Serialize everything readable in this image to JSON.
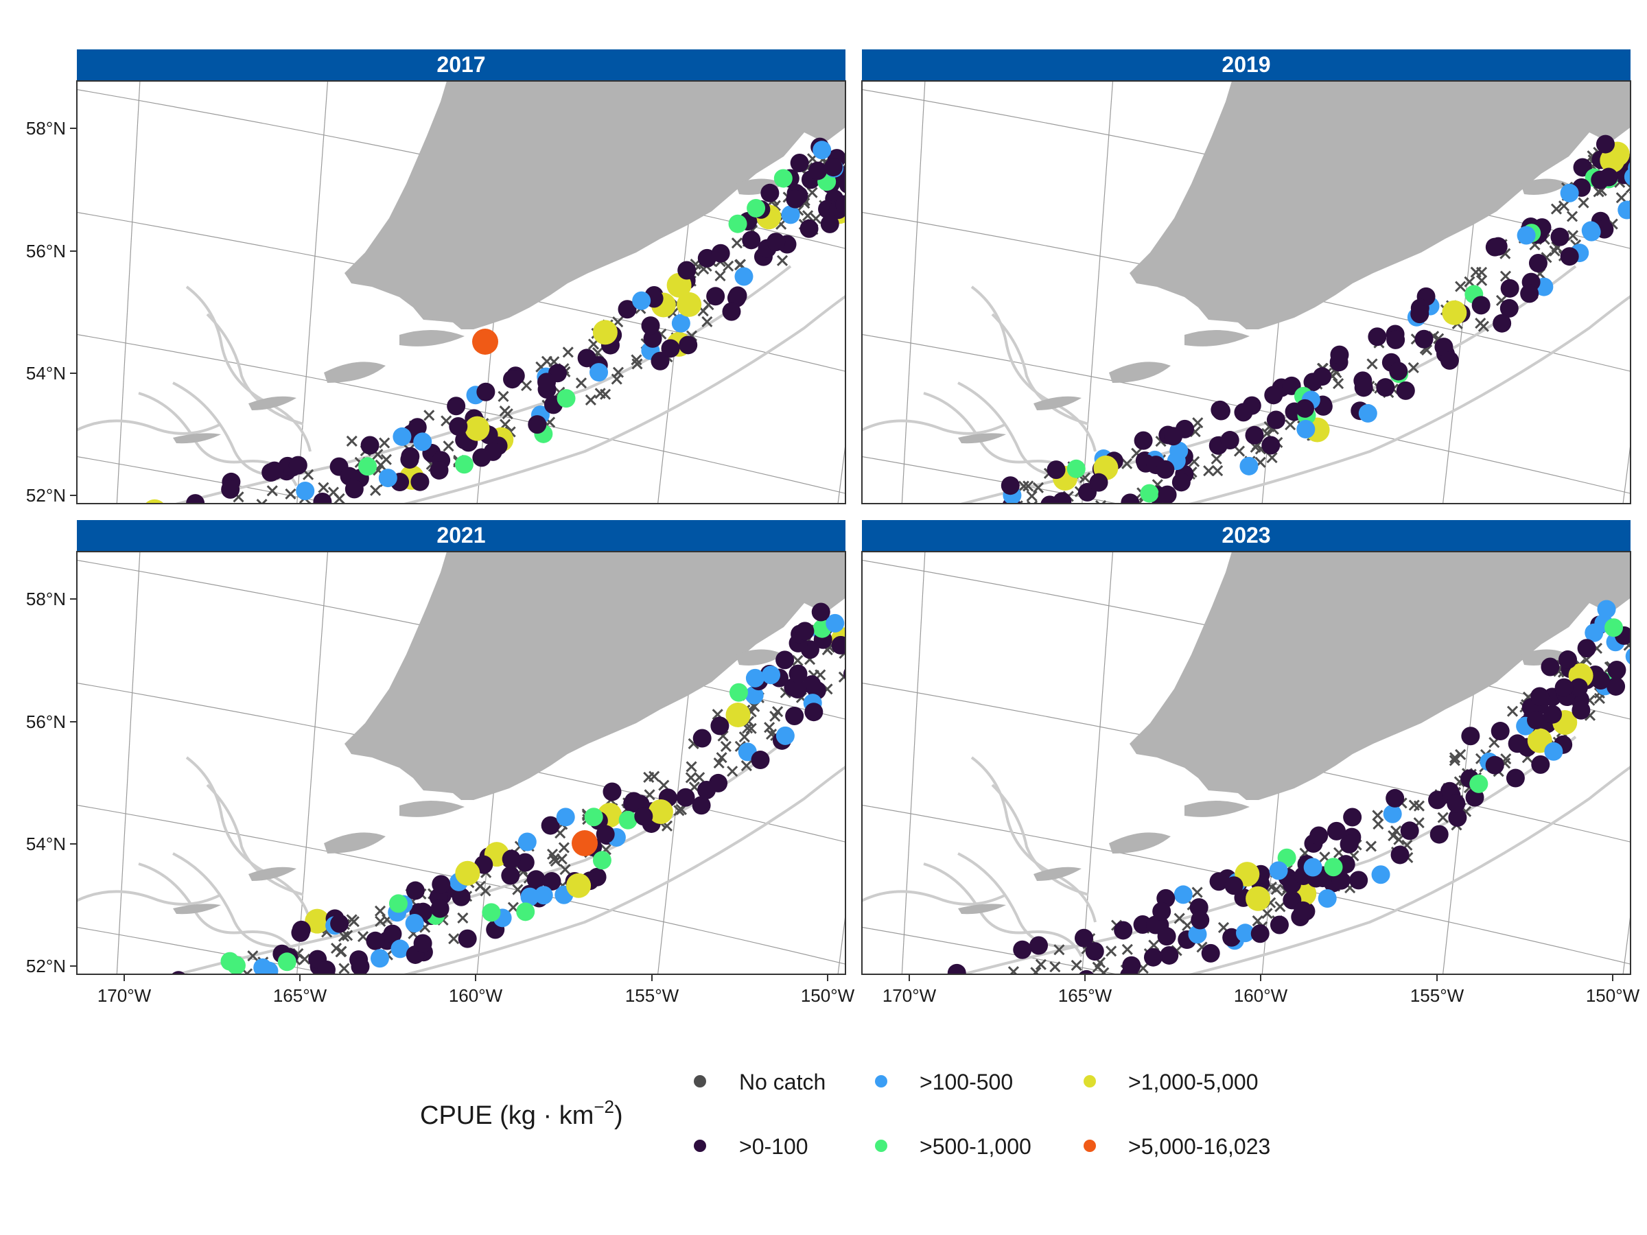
{
  "map": {
    "panels": [
      {
        "label": "2017"
      },
      {
        "label": "2019"
      },
      {
        "label": "2021"
      },
      {
        "label": "2023"
      }
    ],
    "lat_ticks": [
      "58°N",
      "56°N",
      "54°N",
      "52°N"
    ],
    "lon_ticks": [
      "170°W",
      "165°W",
      "160°W",
      "155°W",
      "150°W"
    ],
    "lat_values": [
      58,
      56,
      54,
      52
    ],
    "lon_values": [
      -170,
      -165,
      -160,
      -155,
      -150
    ],
    "colors": {
      "strip": "#0055a4",
      "land": "#b3b3b3",
      "contour": "#cccccc",
      "graticule": "#9a9a9a",
      "no_catch": "#4d4d4d",
      "c0_100": "#2d0d3e",
      "c100_500": "#3a9ef5",
      "c500_1000": "#45f07a",
      "c1000_5000": "#dede2e",
      "c5000_plus": "#f05a16"
    }
  },
  "legend": {
    "title": "CPUE (kg · km",
    "title_sup": "−2",
    "title_close": ")",
    "items": [
      {
        "label": "No catch",
        "color": "#4d4d4d"
      },
      {
        "label": ">0-100",
        "color": "#2d0d3e"
      },
      {
        "label": ">100-500",
        "color": "#3a9ef5"
      },
      {
        "label": ">500-1,000",
        "color": "#45f07a"
      },
      {
        "label": ">1,000-5,000",
        "color": "#dede2e"
      },
      {
        "label": ">5,000-16,023",
        "color": "#f05a16"
      }
    ]
  }
}
